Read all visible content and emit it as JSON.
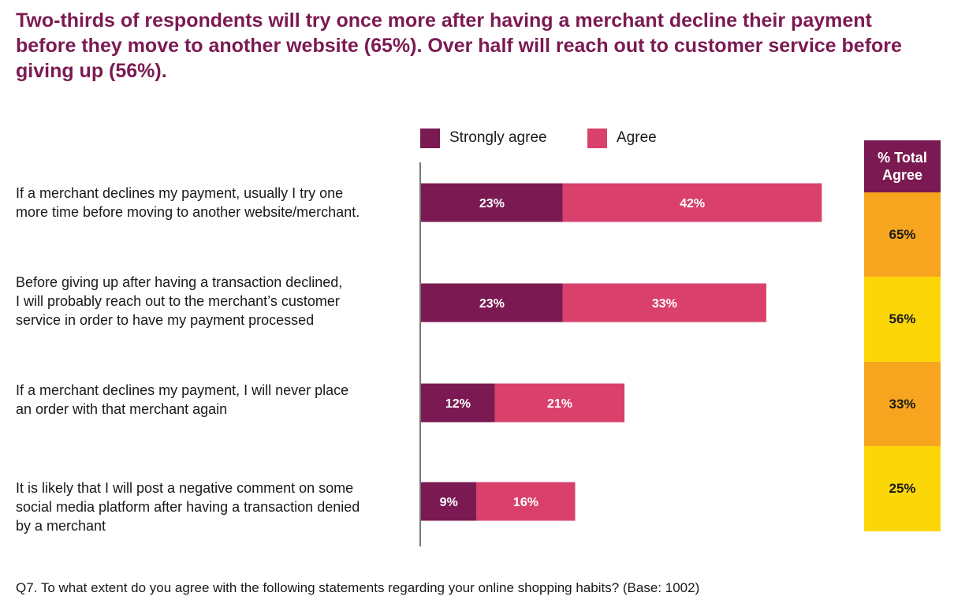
{
  "title": "Two-thirds of respondents will try once more after having a merchant decline their payment before they move to another website (65%). Over half will reach out to customer service before giving up (56%).",
  "legend": [
    {
      "label": "Strongly agree",
      "color": "#7b1a52"
    },
    {
      "label": "Agree",
      "color": "#d9406b"
    }
  ],
  "total_header": "% Total\nAgree",
  "footnote": "Q7. To what extent do you agree with the following statements regarding your online shopping habits? (Base: 1002)",
  "chart_data": {
    "type": "bar",
    "orientation": "horizontal",
    "stacked": true,
    "title": "Two-thirds of respondents will try once more after having a merchant decline their payment before they move to another website (65%). Over half will reach out to customer service before giving up (56%).",
    "categories": [
      "If a merchant declines my payment, usually I try one\nmore time before moving to another website/merchant.",
      "Before giving up after having a transaction declined,\nI will probably reach out to the merchant’s customer\nservice in order to have my payment processed",
      "If a merchant declines my payment, I will never place\nan order with that merchant again",
      "It is likely that I will post a negative comment on some\nsocial media platform after having a transaction denied\nby a merchant"
    ],
    "series": [
      {
        "name": "Strongly agree",
        "values": [
          23,
          23,
          12,
          9
        ],
        "labels": [
          "23%",
          "23%",
          "12%",
          "9%"
        ],
        "color": "#7b1a52"
      },
      {
        "name": "Agree",
        "values": [
          42,
          33,
          21,
          16
        ],
        "labels": [
          "42%",
          "33%",
          "21%",
          "16%"
        ],
        "color": "#d9406b"
      }
    ],
    "total_agree": {
      "header": "% Total\nAgree",
      "values": [
        65,
        56,
        33,
        25
      ],
      "labels": [
        "65%",
        "56%",
        "33%",
        "25%"
      ],
      "colors": [
        "#f7a51f",
        "#fcd708",
        "#f7a51f",
        "#fcd708"
      ]
    },
    "xlim": [
      0,
      65
    ],
    "legend_position": "top",
    "grid": false
  }
}
